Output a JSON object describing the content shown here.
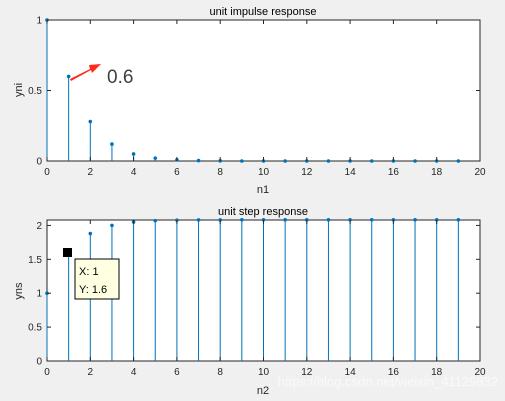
{
  "chart_data": [
    {
      "type": "stem",
      "title": "unit impulse response",
      "xlabel": "n1",
      "ylabel": "yni",
      "xlim": [
        0,
        20
      ],
      "ylim": [
        0,
        1
      ],
      "xticks": [
        0,
        2,
        4,
        6,
        8,
        10,
        12,
        14,
        16,
        18,
        20
      ],
      "yticks": [
        0,
        0.5,
        1
      ],
      "ytick_labels": [
        "0",
        "0.5",
        "1"
      ],
      "grid": false,
      "color": "#0072bd",
      "x": [
        0,
        1,
        2,
        3,
        4,
        5,
        6,
        7,
        8,
        9,
        10,
        11,
        12,
        13,
        14,
        15,
        16,
        17,
        18,
        19
      ],
      "values": [
        1,
        0.6,
        0.28,
        0.12,
        0.05,
        0.02,
        0.008,
        0.003,
        0.001,
        0,
        0,
        0,
        0,
        0,
        0,
        0,
        0,
        0,
        0,
        0
      ],
      "annotation": {
        "text": "0.6",
        "arrow_color": "#ff2a1a"
      }
    },
    {
      "type": "stem",
      "title": "unit step response",
      "xlabel": "n2",
      "ylabel": "yns",
      "xlim": [
        0,
        20
      ],
      "ylim": [
        0,
        2.08
      ],
      "xticks": [
        0,
        2,
        4,
        6,
        8,
        10,
        12,
        14,
        16,
        18,
        20
      ],
      "yticks": [
        0,
        0.5,
        1,
        1.5,
        2
      ],
      "ytick_labels": [
        "0",
        "0.5",
        "1",
        "1.5",
        "2"
      ],
      "grid": false,
      "color": "#0072bd",
      "x": [
        0,
        1,
        2,
        3,
        4,
        5,
        6,
        7,
        8,
        9,
        10,
        11,
        12,
        13,
        14,
        15,
        16,
        17,
        18,
        19
      ],
      "values": [
        1,
        1.6,
        1.88,
        2.0,
        2.05,
        2.07,
        2.078,
        2.081,
        2.082,
        2.083,
        2.083,
        2.083,
        2.083,
        2.083,
        2.083,
        2.083,
        2.083,
        2.083,
        2.083,
        2.083
      ],
      "datatip": {
        "x": 1,
        "y": 1.6,
        "lines": [
          "X: 1",
          "Y: 1.6"
        ]
      }
    }
  ],
  "watermark": "https://blog.csdn.net/weixin_41129832"
}
